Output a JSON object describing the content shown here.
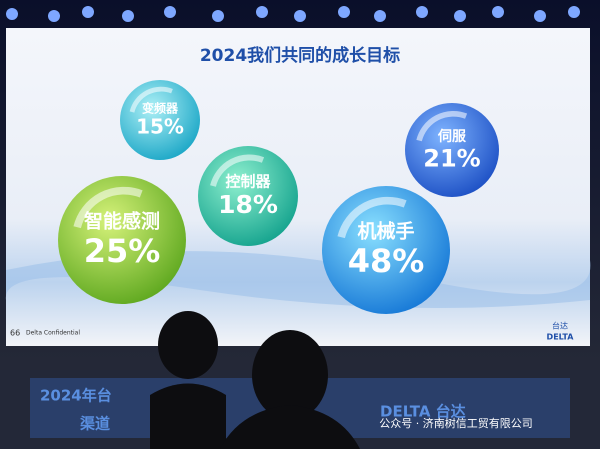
{
  "slide": {
    "title": "2024我们共同的成长目标",
    "bubbles": [
      {
        "label": "变频器",
        "value": "15%"
      },
      {
        "label": "智能感测",
        "value": "25%"
      },
      {
        "label": "控制器",
        "value": "18%"
      },
      {
        "label": "伺服",
        "value": "21%"
      },
      {
        "label": "机械手",
        "value": "48%"
      }
    ],
    "page_number": "66",
    "footer": "Delta Confidential",
    "logo": {
      "cn": "台达",
      "en": "DELTA"
    }
  },
  "banner": {
    "lines": [
      "2024年台",
      "渠道"
    ],
    "logo": "DELTA 台达"
  },
  "watermark": "公众号 · 济南树信工贸有限公司"
}
